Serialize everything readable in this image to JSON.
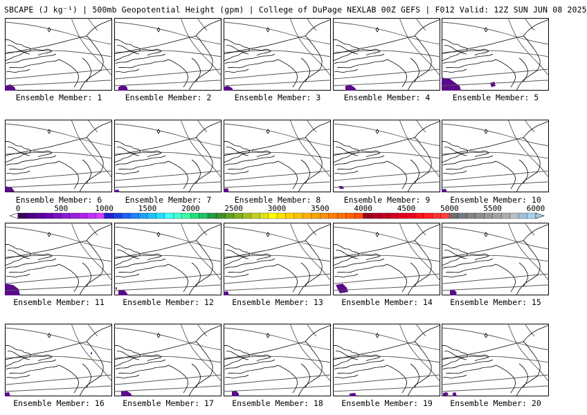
{
  "title": "SBCAPE (J kg⁻¹) | 500mb Geopotential Height (gpm) | College of DuPage NEXLAB 00Z GEFS | F012 Valid: 12Z SUN JUN 08 2025",
  "colorbar": {
    "ticks": [
      "0",
      "500",
      "1000",
      "1500",
      "2000",
      "2500",
      "3000",
      "3500",
      "4000",
      "4500",
      "5000",
      "5500",
      "6000"
    ],
    "colors": [
      "#3a0060",
      "#4a0080",
      "#5a0098",
      "#6a00b0",
      "#7a10c0",
      "#8a20d0",
      "#9a20e0",
      "#b020f0",
      "#c030f8",
      "#d040ff",
      "#2020d0",
      "#2040e0",
      "#2060f0",
      "#2080ff",
      "#20a0ff",
      "#20c0ff",
      "#20e0ff",
      "#40ffff",
      "#40ffd0",
      "#40ffa0",
      "#20e080",
      "#20c060",
      "#20a040",
      "#409030",
      "#60a020",
      "#80b020",
      "#a0c020",
      "#c0d020",
      "#e0e020",
      "#ffff00",
      "#ffe000",
      "#ffd000",
      "#ffc000",
      "#ffb000",
      "#ffa000",
      "#ff9000",
      "#ff8000",
      "#ff7000",
      "#ff6000",
      "#ff5000",
      "#a00020",
      "#b00020",
      "#c00020",
      "#d00020",
      "#e00020",
      "#f00020",
      "#ff1020",
      "#ff2020",
      "#ff3030",
      "#ff4040",
      "#707070",
      "#7a7a7a",
      "#848484",
      "#8e8e8e",
      "#989898",
      "#a2a2a2",
      "#acacac",
      "#b6c0c8",
      "#a0c0d8",
      "#a8d0e8"
    ]
  },
  "panels": [
    {
      "label": "Ensemble Member: 1"
    },
    {
      "label": "Ensemble Member: 2"
    },
    {
      "label": "Ensemble Member: 3"
    },
    {
      "label": "Ensemble Member: 4"
    },
    {
      "label": "Ensemble Member: 5"
    },
    {
      "label": "Ensemble Member: 6"
    },
    {
      "label": "Ensemble Member: 7"
    },
    {
      "label": "Ensemble Member: 8"
    },
    {
      "label": "Ensemble Member: 9"
    },
    {
      "label": "Ensemble Member: 10"
    },
    {
      "label": "Ensemble Member: 11"
    },
    {
      "label": "Ensemble Member: 12"
    },
    {
      "label": "Ensemble Member: 13"
    },
    {
      "label": "Ensemble Member: 14"
    },
    {
      "label": "Ensemble Member: 15"
    },
    {
      "label": "Ensemble Member: 16"
    },
    {
      "label": "Ensemble Member: 17"
    },
    {
      "label": "Ensemble Member: 18"
    },
    {
      "label": "Ensemble Member: 19"
    },
    {
      "label": "Ensemble Member: 20"
    }
  ],
  "colors": {
    "cape_fill": "#5a0a8a",
    "map_lines": "#000000",
    "height_contours": "#555555"
  }
}
